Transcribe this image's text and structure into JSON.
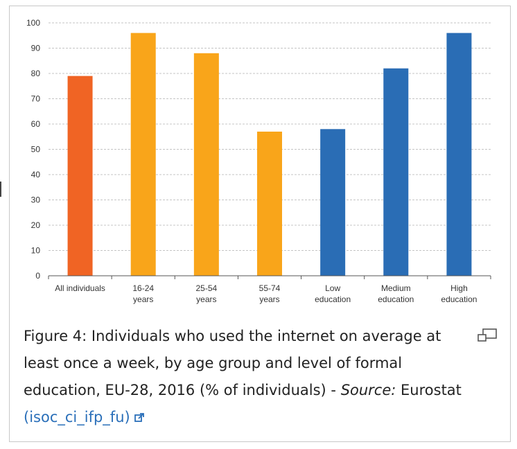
{
  "chart_data": {
    "type": "bar",
    "categories": [
      [
        "All individuals"
      ],
      [
        "16-24",
        "years"
      ],
      [
        "25-54",
        "years"
      ],
      [
        "55-74",
        "years"
      ],
      [
        "Low",
        "education"
      ],
      [
        "Medium",
        "education"
      ],
      [
        "High",
        "education"
      ]
    ],
    "values": [
      79,
      96,
      88,
      57,
      58,
      82,
      96
    ],
    "bar_colors": [
      "#f06424",
      "#f9a51a",
      "#f9a51a",
      "#f9a51a",
      "#2a6db5",
      "#2a6db5",
      "#2a6db5"
    ],
    "ylim": [
      0,
      100
    ],
    "yticks": [
      0,
      10,
      20,
      30,
      40,
      50,
      60,
      70,
      80,
      90,
      100
    ],
    "grid": true,
    "title": "",
    "xlabel": "",
    "ylabel": ""
  },
  "caption": {
    "text": "Figure 4: Individuals who used the internet on average at least once a week, by age group and level of formal education, EU-28, 2016 (% of individuals) - ",
    "source_label": "Source:",
    "source_name": " Eurostat",
    "dataset_link": "(isoc_ci_ifp_fu)"
  },
  "icons": {
    "external_link": "external-link-icon",
    "expand": "expand-icon"
  }
}
